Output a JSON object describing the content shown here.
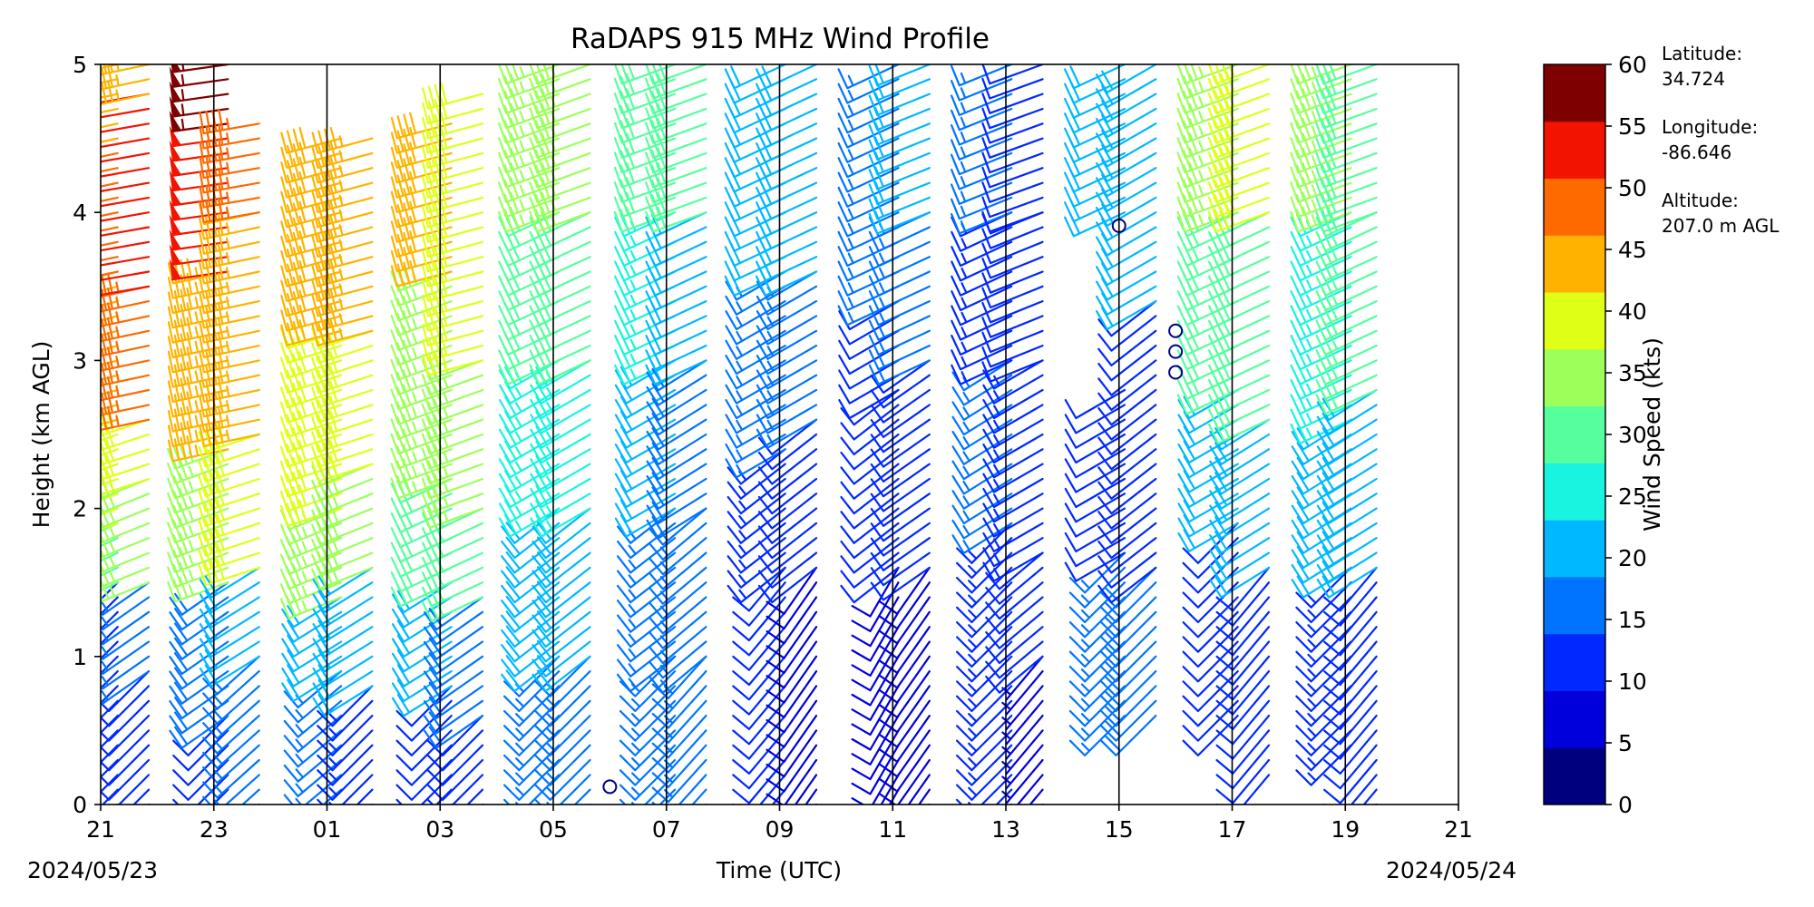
{
  "chart_data": {
    "type": "wind-barb profile",
    "title": "RaDAPS 915 MHz Wind Profile",
    "xlabel": "Time (UTC)",
    "ylabel": "Height (km AGL)",
    "ylim": [
      0,
      5
    ],
    "y_ticks": [
      "0",
      "1",
      "2",
      "3",
      "4",
      "5"
    ],
    "x_ticks": [
      "21",
      "23",
      "01",
      "03",
      "05",
      "07",
      "09",
      "11",
      "13",
      "15",
      "17",
      "19",
      "21"
    ],
    "start_date": "2024/05/23",
    "end_date": "2024/05/24",
    "colorbar": {
      "label": "Wind Speed (kts)",
      "ticks": [
        "0",
        "5",
        "10",
        "15",
        "20",
        "25",
        "30",
        "35",
        "40",
        "45",
        "50",
        "55",
        "60"
      ],
      "range": [
        0,
        60
      ],
      "colors": [
        "#00007f",
        "#0000dc",
        "#0028ff",
        "#0074ff",
        "#00b8ff",
        "#18f4e0",
        "#56ff9d",
        "#9cff5a",
        "#e0ff17",
        "#ffb300",
        "#ff6a00",
        "#f21400",
        "#7f0000"
      ]
    },
    "scan_times": [
      21.3,
      21.85,
      23.25,
      23.8,
      1.25,
      1.8,
      3.2,
      3.75,
      5.1,
      5.65,
      7.15,
      7.7,
      9.1,
      9.65,
      11.1,
      11.65,
      13.1,
      13.65,
      15.1,
      15.65,
      17.1,
      17.65,
      19.1,
      19.55
    ],
    "profiles": [
      {
        "time": 21.3,
        "layers": [
          {
            "z0": 0.0,
            "z1": 1.5,
            "speed": 12,
            "dir": 225
          },
          {
            "z0": 1.5,
            "z1": 1.9,
            "speed": 28,
            "dir": 245
          },
          {
            "z0": 1.9,
            "z1": 2.6,
            "speed": 38,
            "dir": 250
          },
          {
            "z0": 2.6,
            "z1": 3.6,
            "speed": 44,
            "dir": 255
          },
          {
            "z0": 3.6,
            "z1": 4.5,
            "speed": 47,
            "dir": 258
          },
          {
            "z0": 4.5,
            "z1": 5.0,
            "speed": 43,
            "dir": 258
          }
        ]
      },
      {
        "time": 21.85,
        "layers": [
          {
            "z0": 0.0,
            "z1": 0.9,
            "speed": 10,
            "dir": 225
          },
          {
            "z0": 0.9,
            "z1": 1.5,
            "speed": 17,
            "dir": 235
          },
          {
            "z0": 1.5,
            "z1": 2.2,
            "speed": 33,
            "dir": 248
          },
          {
            "z0": 2.2,
            "z1": 2.6,
            "speed": 40,
            "dir": 252
          },
          {
            "z0": 2.6,
            "z1": 3.5,
            "speed": 47,
            "dir": 258
          },
          {
            "z0": 3.5,
            "z1": 4.8,
            "speed": 52,
            "dir": 260
          },
          {
            "z0": 4.8,
            "z1": 5.0,
            "speed": 46,
            "dir": 258
          }
        ]
      },
      {
        "time": 23.25,
        "layers": [
          {
            "z0": 0.0,
            "z1": 0.6,
            "speed": 10,
            "dir": 225
          },
          {
            "z0": 0.6,
            "z1": 1.5,
            "speed": 18,
            "dir": 235
          },
          {
            "z0": 1.5,
            "z1": 2.4,
            "speed": 35,
            "dir": 250
          },
          {
            "z0": 2.4,
            "z1": 3.6,
            "speed": 46,
            "dir": 258
          },
          {
            "z0": 3.6,
            "z1": 4.6,
            "speed": 52,
            "dir": 262
          },
          {
            "z0": 4.6,
            "z1": 5.0,
            "speed": 57,
            "dir": 262
          }
        ]
      },
      {
        "time": 23.8,
        "layers": [
          {
            "z0": 0.0,
            "z1": 1.0,
            "speed": 14,
            "dir": 228
          },
          {
            "z0": 1.0,
            "z1": 1.6,
            "speed": 22,
            "dir": 238
          },
          {
            "z0": 1.6,
            "z1": 2.5,
            "speed": 38,
            "dir": 252
          },
          {
            "z0": 2.5,
            "z1": 4.0,
            "speed": 44,
            "dir": 258
          },
          {
            "z0": 4.0,
            "z1": 4.6,
            "speed": 47,
            "dir": 260
          }
        ]
      },
      {
        "time": 1.25,
        "layers": [
          {
            "z0": 0.0,
            "z1": 0.9,
            "speed": 17,
            "dir": 230
          },
          {
            "z0": 0.9,
            "z1": 1.4,
            "speed": 22,
            "dir": 238
          },
          {
            "z0": 1.4,
            "z1": 2.0,
            "speed": 33,
            "dir": 248
          },
          {
            "z0": 2.0,
            "z1": 3.2,
            "speed": 38,
            "dir": 252
          },
          {
            "z0": 3.2,
            "z1": 4.5,
            "speed": 42,
            "dir": 255
          }
        ]
      },
      {
        "time": 1.8,
        "layers": [
          {
            "z0": 0.0,
            "z1": 0.8,
            "speed": 13,
            "dir": 225
          },
          {
            "z0": 0.8,
            "z1": 1.6,
            "speed": 22,
            "dir": 238
          },
          {
            "z0": 1.6,
            "z1": 2.3,
            "speed": 33,
            "dir": 248
          },
          {
            "z0": 2.3,
            "z1": 3.2,
            "speed": 39,
            "dir": 252
          },
          {
            "z0": 3.2,
            "z1": 4.5,
            "speed": 43,
            "dir": 255
          }
        ]
      },
      {
        "time": 3.2,
        "layers": [
          {
            "z0": 0.0,
            "z1": 0.8,
            "speed": 12,
            "dir": 225
          },
          {
            "z0": 0.8,
            "z1": 1.5,
            "speed": 20,
            "dir": 238
          },
          {
            "z0": 1.5,
            "z1": 2.2,
            "speed": 28,
            "dir": 245
          },
          {
            "z0": 2.2,
            "z1": 3.6,
            "speed": 36,
            "dir": 250
          },
          {
            "z0": 3.6,
            "z1": 4.6,
            "speed": 42,
            "dir": 255
          }
        ]
      },
      {
        "time": 3.75,
        "layers": [
          {
            "z0": 0.0,
            "z1": 0.6,
            "speed": 10,
            "dir": 225
          },
          {
            "z0": 0.6,
            "z1": 1.4,
            "speed": 18,
            "dir": 235
          },
          {
            "z0": 1.4,
            "z1": 2.0,
            "speed": 28,
            "dir": 245
          },
          {
            "z0": 2.0,
            "z1": 3.0,
            "speed": 36,
            "dir": 250
          },
          {
            "z0": 3.0,
            "z1": 4.8,
            "speed": 41,
            "dir": 255
          }
        ]
      },
      {
        "time": 5.1,
        "layers": [
          {
            "z0": 0.2,
            "z1": 1.0,
            "speed": 15,
            "dir": 225
          },
          {
            "z0": 1.0,
            "z1": 2.0,
            "speed": 19,
            "dir": 232
          },
          {
            "z0": 2.0,
            "z1": 3.0,
            "speed": 24,
            "dir": 240
          },
          {
            "z0": 3.0,
            "z1": 4.0,
            "speed": 31,
            "dir": 245
          },
          {
            "z0": 4.0,
            "z1": 5.0,
            "speed": 36,
            "dir": 250
          }
        ]
      },
      {
        "time": 5.65,
        "layers": [
          {
            "z0": 0.0,
            "z1": 1.0,
            "speed": 16,
            "dir": 225
          },
          {
            "z0": 1.0,
            "z1": 2.0,
            "speed": 21,
            "dir": 232
          },
          {
            "z0": 2.0,
            "z1": 3.0,
            "speed": 27,
            "dir": 240
          },
          {
            "z0": 3.0,
            "z1": 4.0,
            "speed": 31,
            "dir": 245
          },
          {
            "z0": 4.0,
            "z1": 5.0,
            "speed": 35,
            "dir": 250
          }
        ]
      },
      {
        "time": 7.15,
        "layers": [
          {
            "z0": 0.0,
            "z1": 1.0,
            "speed": 17,
            "dir": 225
          },
          {
            "z0": 1.0,
            "z1": 2.0,
            "speed": 15,
            "dir": 232
          },
          {
            "z0": 2.0,
            "z1": 3.0,
            "speed": 20,
            "dir": 240
          },
          {
            "z0": 3.0,
            "z1": 4.0,
            "speed": 24,
            "dir": 245
          },
          {
            "z0": 4.0,
            "z1": 5.0,
            "speed": 30,
            "dir": 250
          }
        ]
      },
      {
        "time": 7.7,
        "layers": [
          {
            "z0": 0.0,
            "z1": 1.0,
            "speed": 16,
            "dir": 222
          },
          {
            "z0": 1.0,
            "z1": 2.0,
            "speed": 14,
            "dir": 230
          },
          {
            "z0": 2.0,
            "z1": 3.0,
            "speed": 18,
            "dir": 238
          },
          {
            "z0": 3.0,
            "z1": 4.0,
            "speed": 22,
            "dir": 245
          },
          {
            "z0": 4.0,
            "z1": 5.0,
            "speed": 28,
            "dir": 250
          }
        ]
      },
      {
        "time": 9.1,
        "layers": [
          {
            "z0": 0.0,
            "z1": 1.6,
            "speed": 11,
            "dir": 220
          },
          {
            "z0": 1.6,
            "z1": 2.4,
            "speed": 13,
            "dir": 232
          },
          {
            "z0": 2.4,
            "z1": 3.6,
            "speed": 16,
            "dir": 240
          },
          {
            "z0": 3.6,
            "z1": 5.0,
            "speed": 21,
            "dir": 245
          }
        ]
      },
      {
        "time": 9.65,
        "layers": [
          {
            "z0": 0.0,
            "z1": 1.6,
            "speed": 9,
            "dir": 215
          },
          {
            "z0": 1.6,
            "z1": 2.6,
            "speed": 12,
            "dir": 232
          },
          {
            "z0": 2.6,
            "z1": 3.6,
            "speed": 15,
            "dir": 240
          },
          {
            "z0": 3.6,
            "z1": 5.0,
            "speed": 21,
            "dir": 245
          }
        ]
      },
      {
        "time": 11.1,
        "layers": [
          {
            "z0": 0.0,
            "z1": 1.6,
            "speed": 8,
            "dir": 210
          },
          {
            "z0": 1.6,
            "z1": 2.8,
            "speed": 10,
            "dir": 232
          },
          {
            "z0": 2.8,
            "z1": 3.4,
            "speed": 12,
            "dir": 240
          },
          {
            "z0": 3.4,
            "z1": 5.0,
            "speed": 16,
            "dir": 245
          }
        ]
      },
      {
        "time": 11.65,
        "layers": [
          {
            "z0": 0.0,
            "z1": 1.6,
            "speed": 9,
            "dir": 215
          },
          {
            "z0": 1.6,
            "z1": 3.0,
            "speed": 12,
            "dir": 235
          },
          {
            "z0": 3.0,
            "z1": 4.0,
            "speed": 14,
            "dir": 245
          },
          {
            "z0": 4.0,
            "z1": 5.0,
            "speed": 19,
            "dir": 248
          }
        ]
      },
      {
        "time": 13.1,
        "layers": [
          {
            "z0": 0.0,
            "z1": 1.9,
            "speed": 13,
            "dir": 225
          },
          {
            "z0": 1.9,
            "z1": 3.0,
            "speed": 14,
            "dir": 238
          },
          {
            "z0": 3.0,
            "z1": 4.0,
            "speed": 13,
            "dir": 245
          },
          {
            "z0": 4.0,
            "z1": 5.0,
            "speed": 15,
            "dir": 248
          }
        ]
      },
      {
        "time": 13.65,
        "layers": [
          {
            "z0": 0.0,
            "z1": 1.0,
            "speed": 6,
            "dir": 220
          },
          {
            "z0": 1.0,
            "z1": 1.7,
            "speed": 11,
            "dir": 230
          },
          {
            "z0": 1.7,
            "z1": 3.0,
            "speed": 13,
            "dir": 240
          },
          {
            "z0": 3.0,
            "z1": 4.0,
            "speed": 10,
            "dir": 248
          },
          {
            "z0": 4.0,
            "z1": 5.0,
            "speed": 11,
            "dir": 250
          }
        ]
      },
      {
        "time": 15.1,
        "layers": [
          {
            "z0": 0.6,
            "z1": 1.7,
            "speed": 17,
            "dir": 225
          },
          {
            "z0": 1.7,
            "z1": 2.8,
            "speed": 12,
            "dir": 240
          },
          {
            "z0": 4.0,
            "z1": 5.0,
            "speed": 20,
            "dir": 245
          }
        ]
      },
      {
        "time": 15.65,
        "layers": [
          {
            "z0": 0.6,
            "z1": 1.6,
            "speed": 18,
            "dir": 225
          },
          {
            "z0": 1.6,
            "z1": 3.4,
            "speed": 12,
            "dir": 232
          },
          {
            "z0": 3.4,
            "z1": 5.0,
            "speed": 22,
            "dir": 240
          }
        ]
      },
      {
        "time": 17.1,
        "layers": [
          {
            "z0": 0.6,
            "z1": 1.9,
            "speed": 12,
            "dir": 225
          },
          {
            "z0": 1.9,
            "z1": 2.8,
            "speed": 22,
            "dir": 240
          },
          {
            "z0": 2.8,
            "z1": 4.0,
            "speed": 29,
            "dir": 245
          },
          {
            "z0": 4.0,
            "z1": 5.0,
            "speed": 33,
            "dir": 250
          }
        ]
      },
      {
        "time": 17.65,
        "layers": [
          {
            "z0": 0.2,
            "z1": 1.6,
            "speed": 10,
            "dir": 220
          },
          {
            "z0": 1.6,
            "z1": 2.6,
            "speed": 20,
            "dir": 238
          },
          {
            "z0": 2.6,
            "z1": 4.0,
            "speed": 31,
            "dir": 245
          },
          {
            "z0": 4.0,
            "z1": 5.0,
            "speed": 40,
            "dir": 250
          }
        ]
      },
      {
        "time": 19.1,
        "layers": [
          {
            "z0": 0.4,
            "z1": 1.6,
            "speed": 13,
            "dir": 225
          },
          {
            "z0": 1.6,
            "z1": 2.6,
            "speed": 22,
            "dir": 238
          },
          {
            "z0": 2.6,
            "z1": 4.0,
            "speed": 27,
            "dir": 245
          },
          {
            "z0": 4.0,
            "z1": 5.0,
            "speed": 33,
            "dir": 250
          }
        ]
      },
      {
        "time": 19.55,
        "layers": [
          {
            "z0": 0.0,
            "z1": 1.6,
            "speed": 12,
            "dir": 220
          },
          {
            "z0": 1.6,
            "z1": 2.8,
            "speed": 22,
            "dir": 238
          },
          {
            "z0": 2.8,
            "z1": 4.0,
            "speed": 28,
            "dir": 245
          },
          {
            "z0": 4.0,
            "z1": 5.0,
            "speed": 31,
            "dir": 250
          }
        ]
      }
    ],
    "calm_markers": [
      {
        "time": 6.0,
        "height": 0.12
      },
      {
        "time": 15.0,
        "height": 3.91
      },
      {
        "time": 16.0,
        "height": 3.2
      },
      {
        "time": 16.0,
        "height": 3.06
      },
      {
        "time": 16.0,
        "height": 2.92
      }
    ],
    "barb_step_km": 0.1
  },
  "station": {
    "latitude_label": "Latitude:",
    "latitude_value": "34.724",
    "longitude_label": "Longitude:",
    "longitude_value": "-86.646",
    "altitude_label": "Altitude:",
    "altitude_value": "207.0 m AGL"
  }
}
